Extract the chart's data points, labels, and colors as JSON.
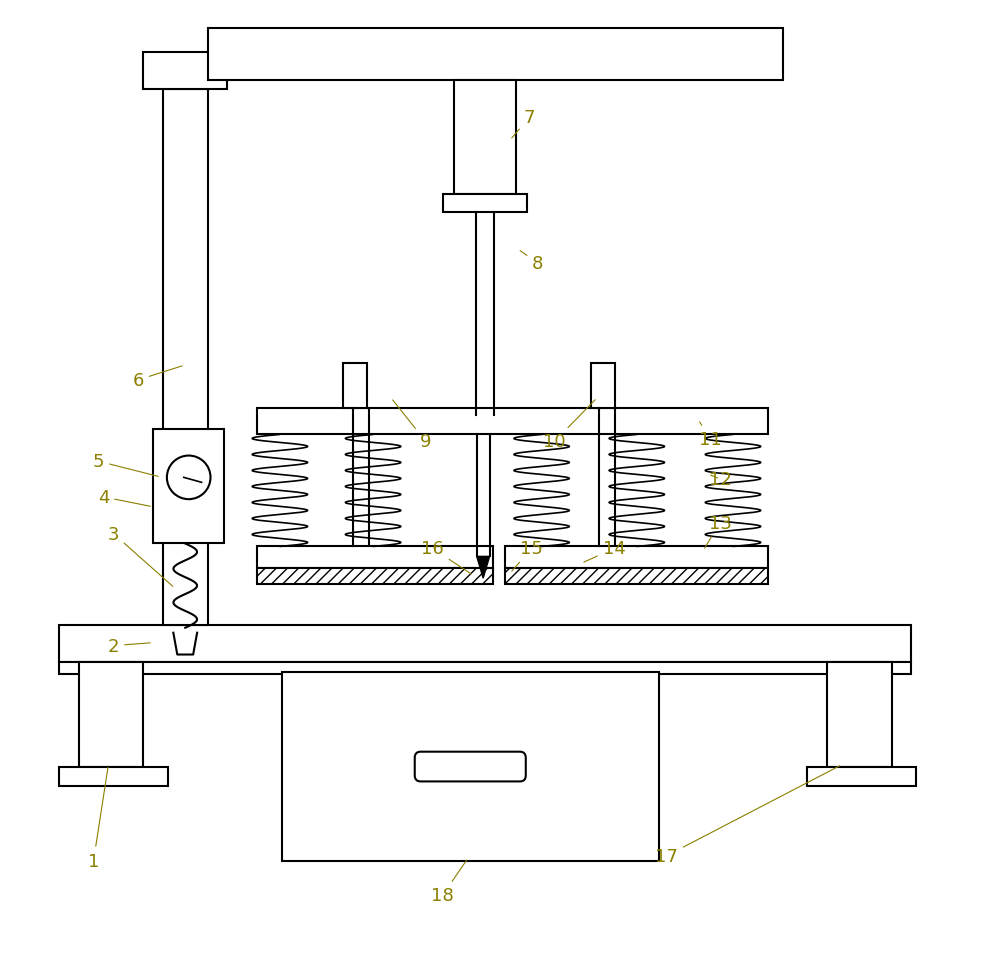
{
  "bg_color": "#ffffff",
  "line_color": "#000000",
  "label_color": "#8B8000",
  "figsize": [
    10.0,
    9.7
  ],
  "dpi": 100
}
